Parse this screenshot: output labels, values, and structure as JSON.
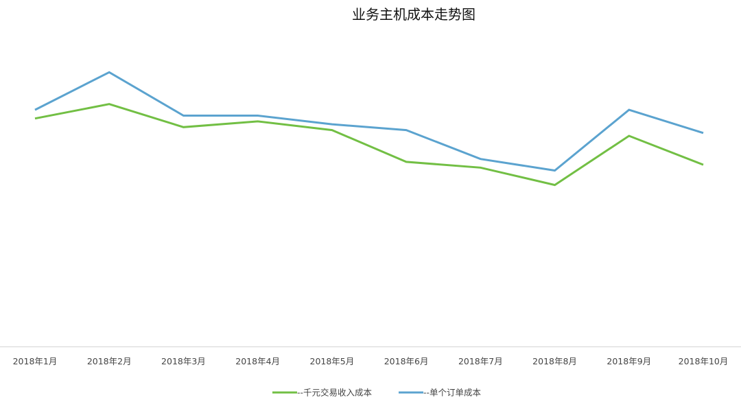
{
  "chart_data": {
    "type": "line",
    "title": "业务主机成本走势图",
    "xlabel": "",
    "ylabel": "",
    "categories": [
      "2018年1月",
      "2018年2月",
      "2018年3月",
      "2018年4月",
      "2018年5月",
      "2018年6月",
      "2018年7月",
      "2018年8月",
      "2018年9月",
      "2018年10月"
    ],
    "series": [
      {
        "name": "--千元交易收入成本",
        "color": "#72bf44",
        "values": [
          0.79,
          0.84,
          0.76,
          0.78,
          0.75,
          0.64,
          0.62,
          0.56,
          0.73,
          0.63
        ]
      },
      {
        "name": "--单个订单成本",
        "color": "#5ba3cf",
        "values": [
          0.82,
          0.95,
          0.8,
          0.8,
          0.77,
          0.75,
          0.65,
          0.61,
          0.82,
          0.74
        ]
      }
    ],
    "ylim": [
      0,
      1.2
    ],
    "grid": false,
    "y_axis_visible": false,
    "legend_position": "bottom-center"
  }
}
